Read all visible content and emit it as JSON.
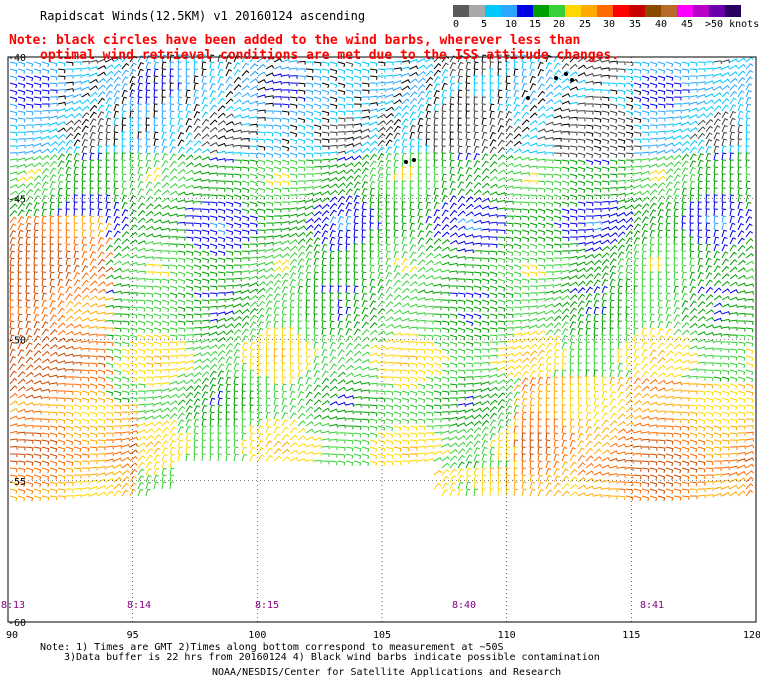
{
  "title": "Rapidscat Winds(12.5KM) v1 20160124 ascending",
  "note_line1": "Note: black circles have been added to the wind barbs, wherever less than",
  "note_line2": "optimal wind retrieval conditions are met due to the ISS attitude changes.",
  "legend": {
    "labels": [
      "0",
      "5",
      "10",
      "15",
      "20",
      "25",
      "30",
      "35",
      "40",
      "45",
      ">50 knots"
    ],
    "colors": [
      "#5a5a5a",
      "#a8a8a8",
      "#00c8ff",
      "#2aa6ff",
      "#0000e6",
      "#00a000",
      "#38d038",
      "#ffd800",
      "#ffaa00",
      "#ff6a00",
      "#ff0000",
      "#c80000",
      "#8a4a00",
      "#b86a2a",
      "#ff00ff",
      "#b800c8",
      "#6a00aa",
      "#2a0060"
    ]
  },
  "axes": {
    "x_labels": [
      "90",
      "95",
      "100",
      "105",
      "110",
      "115",
      "120"
    ],
    "y_labels": [
      "-40",
      "-45",
      "-50",
      "-55",
      "-60"
    ]
  },
  "time_labels": [
    "8:13",
    "8:14",
    "8:15",
    "8:40",
    "8:41"
  ],
  "footnote1": "Note: 1) Times are GMT 2)Times along bottom correspond to measurement at ~50S",
  "footnote2": "3)Data buffer is 22 hrs from 20160124 4) Black wind barbs indicate possible contamination",
  "credit": "NOAA/NESDIS/Center for Satellite Applications and Research"
}
